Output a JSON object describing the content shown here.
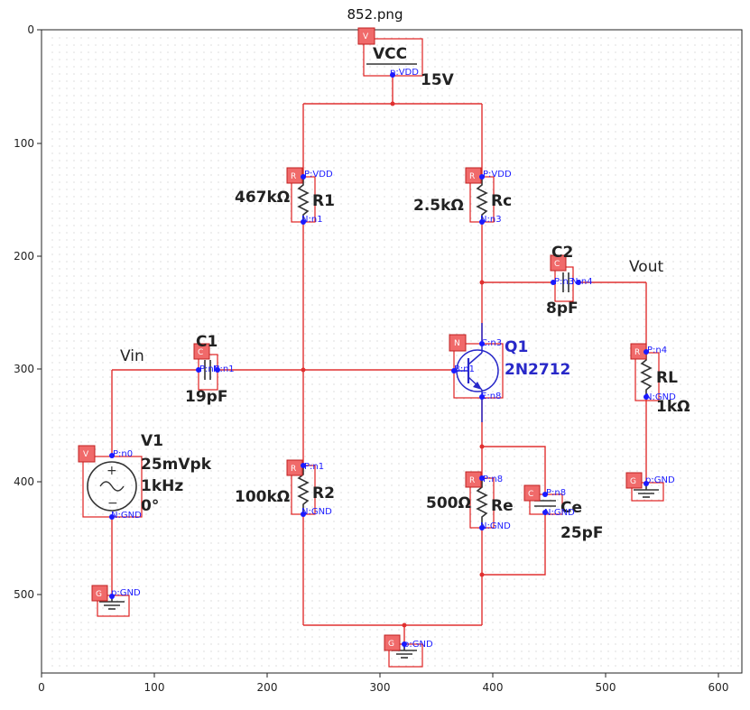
{
  "title": "852.png",
  "axes": {
    "x_ticks": [
      "0",
      "100",
      "200",
      "300",
      "400",
      "500",
      "600"
    ],
    "y_ticks": [
      "0",
      "100",
      "200",
      "300",
      "400",
      "500"
    ]
  },
  "labels": {
    "vcc": "VCC",
    "vcc_value": "15V",
    "r1_name": "R1",
    "r1_value": "467kΩ",
    "rc_name": "Rc",
    "rc_value": "2.5kΩ",
    "c2_name": "C2",
    "c2_value": "8pF",
    "vout": "Vout",
    "c1_name": "C1",
    "c1_value": "19pF",
    "vin": "Vin",
    "q1_name": "Q1",
    "q1_value": "2N2712",
    "rl_name": "RL",
    "rl_value": "1kΩ",
    "v1_name": "V1",
    "v1_amp": "25mVpk",
    "v1_freq": "1kHz",
    "v1_phase": "0°",
    "r2_name": "R2",
    "r2_value": "100kΩ",
    "re_name": "Re",
    "re_value": "500Ω",
    "ce_name": "Ce",
    "ce_value": "25pF"
  },
  "tags": {
    "vcc": "V",
    "r1": "R",
    "rc": "R",
    "c2": "C",
    "c1": "C",
    "q1": "N",
    "rl": "R",
    "v1": "V",
    "r2": "R",
    "re": "R",
    "ce": "C",
    "gnd_v1": "G",
    "gnd_bottom": "G",
    "gnd_rl": "G"
  },
  "pins": {
    "vcc_p": "p:VDD",
    "r1_p": "P:VDD",
    "r1_n": "N:n1",
    "rc_p": "P:VDD",
    "rc_n": "N:n3",
    "c2_p": "P:n3",
    "c2_n": "N:n4",
    "c1_p": "P:n0",
    "c1_n": "N:n1",
    "q1_c": "C:n3",
    "q1_b": "B:n1",
    "q1_e": "E:n8",
    "rl_p": "P:n4",
    "rl_n": "N:GND",
    "gnd_rl": "p:GND",
    "v1_p": "P:n0",
    "v1_n": "N:GND",
    "gnd_v1": "p:GND",
    "r2_p": "P:n1",
    "r2_n": "N:GND",
    "re_p": "P:n8",
    "re_n": "N:GND",
    "ce_p": "P:n8",
    "ce_n": "N:GND",
    "gnd_bottom": "p:GND"
  },
  "colors": {
    "wire": "#e03030",
    "bbox": "#e02020",
    "tag_fill": "#f06a6a",
    "pin": "#1a1aff",
    "transistor_label": "#2828c8"
  }
}
